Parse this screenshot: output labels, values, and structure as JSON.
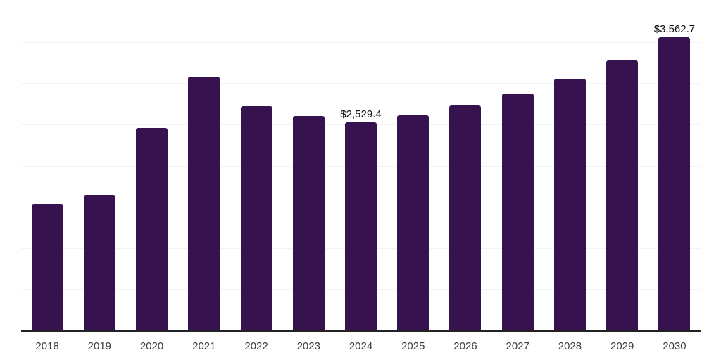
{
  "chart_data": {
    "type": "bar",
    "title": "",
    "xlabel": "",
    "ylabel": "",
    "categories": [
      "2018",
      "2019",
      "2020",
      "2021",
      "2022",
      "2023",
      "2024",
      "2025",
      "2026",
      "2027",
      "2028",
      "2029",
      "2030"
    ],
    "values": [
      1545,
      1643,
      2466,
      3089,
      2731,
      2606,
      2529.4,
      2620,
      2738,
      2880,
      3061,
      3282,
      3562.7
    ],
    "labeled_points": [
      {
        "category": "2024",
        "label": "$2,529.4"
      },
      {
        "category": "2030",
        "label": "$3,562.7"
      }
    ],
    "ylim": [
      0,
      4000
    ],
    "gridline_interval": 500,
    "grid": true,
    "legend": false,
    "y_tick_labels_visible": false,
    "colors": {
      "bar": "#36124F",
      "gridline": "#F3F3F6",
      "axis_line": "#222222",
      "tick_label": "#3D3D3D",
      "data_label": "#111111",
      "background": "#FFFFFF"
    }
  }
}
